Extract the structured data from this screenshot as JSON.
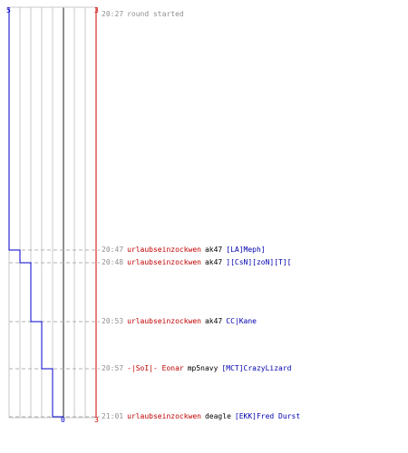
{
  "colors": {
    "team_a": "#0000cc",
    "team_b": "#cc0000",
    "grid": "#c8c8c8",
    "midline": "#909090",
    "dash": "#b0b0b0"
  },
  "scoreboard": {
    "team_a_start": "5",
    "team_a_end": "0",
    "team_b_start": "3",
    "team_b_end": "3",
    "team_a_alive_steps": [
      5,
      4,
      3,
      2,
      1,
      0
    ]
  },
  "start_event": {
    "time": "20:27",
    "text": "round started"
  },
  "kills": [
    {
      "time": "20:47",
      "killer": "urlaubseinzockwen",
      "weapon": "ak47",
      "victim": "[LA]Meph]"
    },
    {
      "time": "20:48",
      "killer": "urlaubseinzockwen",
      "weapon": "ak47",
      "victim": "][CsN][zoN][T]["
    },
    {
      "time": "20:53",
      "killer": "urlaubseinzockwen",
      "weapon": "ak47",
      "victim": "CC|Kane"
    },
    {
      "time": "20:57",
      "killer": "-|SoI|- Eonar",
      "weapon": "mp5navy",
      "victim": "[MCT]CrazyLizard"
    },
    {
      "time": "21:01",
      "killer": "urlaubseinzockwen",
      "weapon": "deagle",
      "victim": "[EKK]Fred Durst"
    }
  ]
}
